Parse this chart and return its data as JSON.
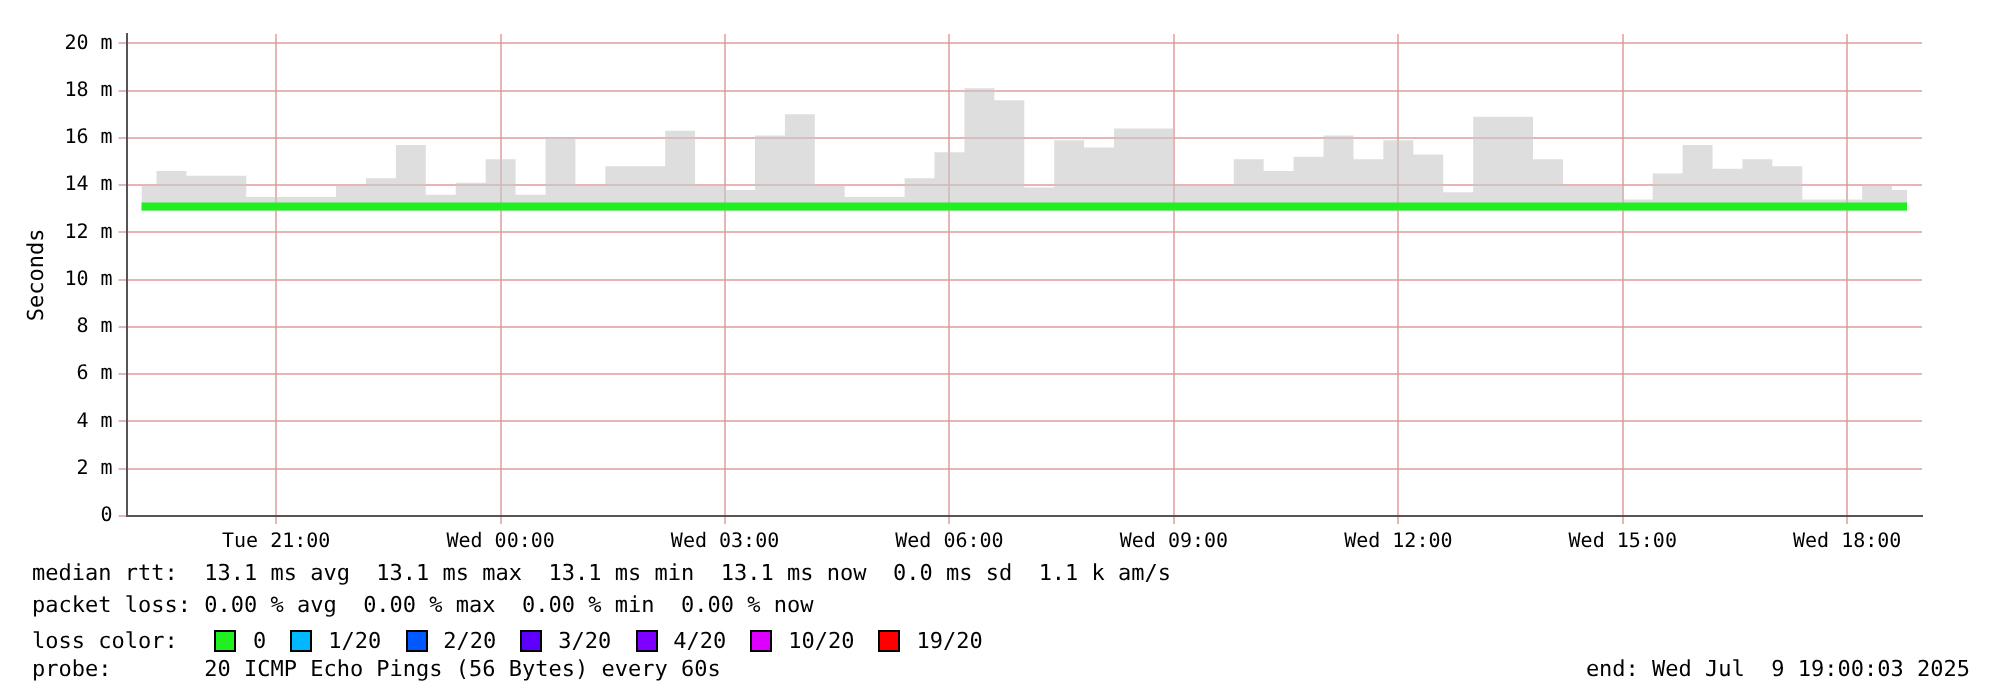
{
  "chart_data": {
    "type": "step",
    "ylabel": "Seconds",
    "legend_title": "loss color:",
    "legend": "bottom",
    "grid": true,
    "xlim": [
      "2025-07-08T19:00",
      "2025-07-09T19:00"
    ],
    "xticks": [
      {
        "value": "2025-07-08T21:00",
        "label": "Tue 21:00"
      },
      {
        "value": "2025-07-09T00:00",
        "label": "Wed 00:00"
      },
      {
        "value": "2025-07-09T03:00",
        "label": "Wed 03:00"
      },
      {
        "value": "2025-07-09T06:00",
        "label": "Wed 06:00"
      },
      {
        "value": "2025-07-09T09:00",
        "label": "Wed 09:00"
      },
      {
        "value": "2025-07-09T12:00",
        "label": "Wed 12:00"
      },
      {
        "value": "2025-07-09T15:00",
        "label": "Wed 15:00"
      },
      {
        "value": "2025-07-09T18:00",
        "label": "Wed 18:00"
      }
    ],
    "ylim": [
      0,
      20.4
    ],
    "yticks": [
      0,
      {
        "value": 2,
        "label": "2 m"
      },
      {
        "value": 4,
        "label": "4 m"
      },
      {
        "value": 6,
        "label": "6 m"
      },
      {
        "value": 8,
        "label": "8 m"
      },
      {
        "value": 10,
        "label": "10 m"
      },
      {
        "value": 12,
        "label": "12 m"
      },
      {
        "value": 14,
        "label": "14 m"
      },
      {
        "value": 16,
        "label": "16 m"
      },
      {
        "value": 18,
        "label": "18 m"
      },
      {
        "value": 20,
        "label": "20 m"
      }
    ],
    "x": [
      "2025-07-08T19:12",
      "2025-07-08T19:36",
      "2025-07-08T20:00",
      "2025-07-08T20:24",
      "2025-07-08T20:48",
      "2025-07-08T21:12",
      "2025-07-08T21:36",
      "2025-07-08T22:00",
      "2025-07-08T22:24",
      "2025-07-08T22:48",
      "2025-07-08T23:12",
      "2025-07-08T23:36",
      "2025-07-09T00:00",
      "2025-07-09T00:24",
      "2025-07-09T00:48",
      "2025-07-09T01:12",
      "2025-07-09T01:36",
      "2025-07-09T02:00",
      "2025-07-09T02:24",
      "2025-07-09T02:48",
      "2025-07-09T03:12",
      "2025-07-09T03:36",
      "2025-07-09T04:00",
      "2025-07-09T04:24",
      "2025-07-09T04:48",
      "2025-07-09T05:12",
      "2025-07-09T05:36",
      "2025-07-09T06:00",
      "2025-07-09T06:24",
      "2025-07-09T06:48",
      "2025-07-09T07:12",
      "2025-07-09T07:36",
      "2025-07-09T08:00",
      "2025-07-09T08:24",
      "2025-07-09T08:48",
      "2025-07-09T09:12",
      "2025-07-09T09:36",
      "2025-07-09T10:00",
      "2025-07-09T10:24",
      "2025-07-09T10:48",
      "2025-07-09T11:12",
      "2025-07-09T11:36",
      "2025-07-09T12:00",
      "2025-07-09T12:24",
      "2025-07-09T12:48",
      "2025-07-09T13:12",
      "2025-07-09T13:36",
      "2025-07-09T14:00",
      "2025-07-09T14:24",
      "2025-07-09T14:48",
      "2025-07-09T15:12",
      "2025-07-09T15:36",
      "2025-07-09T16:00",
      "2025-07-09T16:24",
      "2025-07-09T16:48",
      "2025-07-09T17:12",
      "2025-07-09T17:36",
      "2025-07-09T18:00",
      "2025-07-09T18:24",
      "2025-07-09T18:48"
    ],
    "series": [
      {
        "name": "0",
        "color": "#20f020",
        "values": [
          13.1,
          13.1,
          13.1,
          13.1,
          13.1,
          13.1,
          13.1,
          13.1,
          13.1,
          13.1,
          13.1,
          13.1,
          13.1,
          13.1,
          13.1,
          13.1,
          13.1,
          13.1,
          13.1,
          13.1,
          13.1,
          13.1,
          13.1,
          13.1,
          13.1,
          13.1,
          13.1,
          13.1,
          13.1,
          13.1,
          13.1,
          13.1,
          13.1,
          13.1,
          13.1,
          13.1,
          13.1,
          13.1,
          13.1,
          13.1,
          13.1,
          13.1,
          13.1,
          13.1,
          13.1,
          13.1,
          13.1,
          13.1,
          13.1,
          13.1,
          13.1,
          13.1,
          13.1,
          13.1,
          13.1,
          13.1,
          13.1,
          13.1,
          13.1,
          13.1
        ],
        "lower": [
          12.9,
          12.9,
          12.9,
          12.9,
          12.9,
          12.9,
          12.9,
          12.9,
          12.9,
          12.9,
          12.9,
          12.9,
          12.9,
          12.9,
          12.9,
          12.9,
          12.9,
          12.9,
          12.9,
          12.9,
          12.9,
          12.9,
          12.9,
          12.9,
          12.9,
          12.9,
          12.9,
          12.9,
          12.9,
          12.9,
          12.9,
          12.9,
          12.9,
          12.9,
          12.9,
          12.9,
          12.9,
          12.9,
          12.9,
          12.9,
          12.9,
          12.9,
          12.9,
          12.9,
          12.9,
          12.9,
          12.9,
          12.9,
          12.9,
          12.9,
          12.9,
          12.9,
          12.9,
          12.9,
          12.9,
          12.9,
          12.9,
          12.9,
          12.9,
          12.9
        ],
        "upper": [
          14.0,
          14.6,
          14.4,
          14.4,
          13.5,
          13.5,
          13.5,
          14.0,
          14.3,
          15.7,
          13.6,
          14.1,
          15.1,
          13.6,
          16.0,
          14.0,
          14.8,
          14.8,
          16.3,
          14.0,
          13.8,
          16.1,
          17.0,
          14.0,
          13.5,
          13.5,
          14.3,
          15.4,
          18.1,
          17.6,
          13.9,
          15.9,
          15.6,
          16.4,
          16.4,
          14.0,
          14.0,
          15.1,
          14.6,
          15.2,
          16.1,
          15.1,
          15.9,
          15.3,
          13.7,
          16.9,
          16.9,
          15.1,
          14.0,
          14.0,
          13.4,
          14.5,
          15.7,
          14.7,
          15.1,
          14.8,
          13.4,
          13.4,
          14.0,
          13.8
        ]
      },
      {
        "name": "1/20",
        "color": "#00b8ff",
        "values": [
          null,
          null,
          null,
          null,
          null,
          null,
          null,
          null,
          null,
          null,
          null,
          null,
          null,
          null,
          null,
          null,
          null,
          null,
          null,
          null,
          null,
          null,
          null,
          null,
          null,
          null,
          null,
          null,
          null,
          null,
          null,
          null,
          null,
          null,
          null,
          null,
          null,
          null,
          null,
          null,
          null,
          null,
          null,
          null,
          null,
          null,
          null,
          null,
          null,
          null,
          null,
          null,
          null,
          null,
          null,
          null,
          null,
          null,
          null,
          null
        ]
      },
      {
        "name": "2/20",
        "color": "#0059ff",
        "values": [
          null,
          null,
          null,
          null,
          null,
          null,
          null,
          null,
          null,
          null,
          null,
          null,
          null,
          null,
          null,
          null,
          null,
          null,
          null,
          null,
          null,
          null,
          null,
          null,
          null,
          null,
          null,
          null,
          null,
          null,
          null,
          null,
          null,
          null,
          null,
          null,
          null,
          null,
          null,
          null,
          null,
          null,
          null,
          null,
          null,
          null,
          null,
          null,
          null,
          null,
          null,
          null,
          null,
          null,
          null,
          null,
          null,
          null,
          null,
          null
        ]
      },
      {
        "name": "3/20",
        "color": "#5e00ff",
        "values": [
          null,
          null,
          null,
          null,
          null,
          null,
          null,
          null,
          null,
          null,
          null,
          null,
          null,
          null,
          null,
          null,
          null,
          null,
          null,
          null,
          null,
          null,
          null,
          null,
          null,
          null,
          null,
          null,
          null,
          null,
          null,
          null,
          null,
          null,
          null,
          null,
          null,
          null,
          null,
          null,
          null,
          null,
          null,
          null,
          null,
          null,
          null,
          null,
          null,
          null,
          null,
          null,
          null,
          null,
          null,
          null,
          null,
          null,
          null,
          null
        ]
      },
      {
        "name": "4/20",
        "color": "#7e00ff",
        "values": [
          null,
          null,
          null,
          null,
          null,
          null,
          null,
          null,
          null,
          null,
          null,
          null,
          null,
          null,
          null,
          null,
          null,
          null,
          null,
          null,
          null,
          null,
          null,
          null,
          null,
          null,
          null,
          null,
          null,
          null,
          null,
          null,
          null,
          null,
          null,
          null,
          null,
          null,
          null,
          null,
          null,
          null,
          null,
          null,
          null,
          null,
          null,
          null,
          null,
          null,
          null,
          null,
          null,
          null,
          null,
          null,
          null,
          null,
          null,
          null
        ]
      },
      {
        "name": "10/20",
        "color": "#dd00ff",
        "values": [
          null,
          null,
          null,
          null,
          null,
          null,
          null,
          null,
          null,
          null,
          null,
          null,
          null,
          null,
          null,
          null,
          null,
          null,
          null,
          null,
          null,
          null,
          null,
          null,
          null,
          null,
          null,
          null,
          null,
          null,
          null,
          null,
          null,
          null,
          null,
          null,
          null,
          null,
          null,
          null,
          null,
          null,
          null,
          null,
          null,
          null,
          null,
          null,
          null,
          null,
          null,
          null,
          null,
          null,
          null,
          null,
          null,
          null,
          null,
          null
        ]
      },
      {
        "name": "19/20",
        "color": "#ff0000",
        "values": [
          null,
          null,
          null,
          null,
          null,
          null,
          null,
          null,
          null,
          null,
          null,
          null,
          null,
          null,
          null,
          null,
          null,
          null,
          null,
          null,
          null,
          null,
          null,
          null,
          null,
          null,
          null,
          null,
          null,
          null,
          null,
          null,
          null,
          null,
          null,
          null,
          null,
          null,
          null,
          null,
          null,
          null,
          null,
          null,
          null,
          null,
          null,
          null,
          null,
          null,
          null,
          null,
          null,
          null,
          null,
          null,
          null,
          null,
          null,
          null
        ]
      }
    ],
    "annotations": [
      "median rtt:  13.1 ms avg  13.1 ms max  13.1 ms min  13.1 ms now  0.0 ms sd  1.1 k am/s",
      "packet loss: 0.00 % avg  0.00 % max  0.00 % min  0.00 % now",
      "probe:       20 ICMP Echo Pings (56 Bytes) every 60s",
      "end: Wed Jul  9 19:00:03 2025"
    ]
  }
}
